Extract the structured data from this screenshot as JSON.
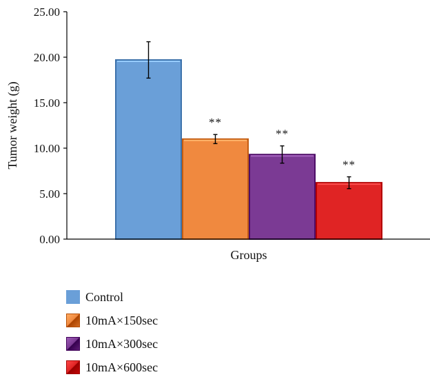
{
  "chart_data": {
    "type": "bar",
    "title": "",
    "xlabel": "Groups",
    "ylabel": "Tumor weight (g)",
    "ylim": [
      0,
      25
    ],
    "yticks": [
      "0.00",
      "5.00",
      "10.00",
      "15.00",
      "20.00",
      "25.00"
    ],
    "categories": [
      "Groups"
    ],
    "series": [
      {
        "name": "Control",
        "values": [
          19.7
        ],
        "error": [
          2.0
        ],
        "significance": "",
        "color": "#6a9fd8",
        "swatch": "solid"
      },
      {
        "name": "10mA×150sec",
        "values": [
          11.0
        ],
        "error": [
          0.5
        ],
        "significance": "**",
        "color": "#f0893f",
        "swatch": "bevel"
      },
      {
        "name": "10mA×300sec",
        "values": [
          9.3
        ],
        "error": [
          0.95
        ],
        "significance": "**",
        "color": "#7b3a94",
        "swatch": "bevel"
      },
      {
        "name": "10mA×600sec",
        "values": [
          6.2
        ],
        "error": [
          0.65
        ],
        "significance": "**",
        "color": "#e02424",
        "swatch": "bevel"
      }
    ],
    "legend_position": "bottom-left",
    "grid": false
  }
}
